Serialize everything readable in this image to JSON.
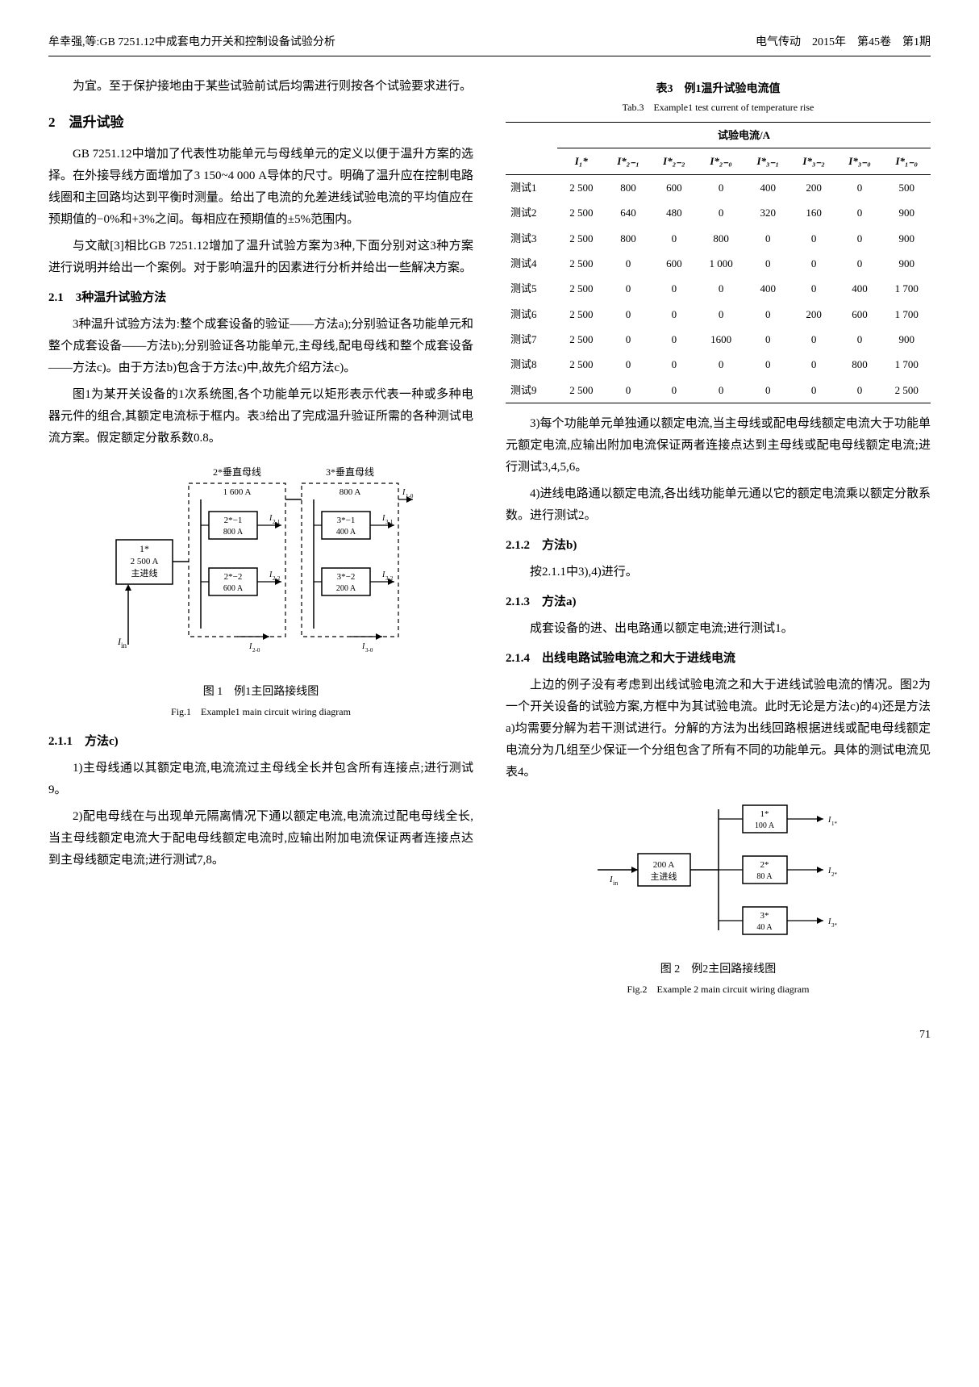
{
  "header": {
    "left": "牟幸强,等:GB 7251.12中成套电力开关和控制设备试验分析",
    "right": "电气传动　2015年　第45卷　第1期"
  },
  "col1": {
    "p1": "为宜。至于保护接地由于某些试验前试后均需进行则按各个试验要求进行。",
    "sec2_title": "2　温升试验",
    "p2": "GB 7251.12中增加了代表性功能单元与母线单元的定义以便于温升方案的选择。在外接导线方面增加了3 150~4 000 A导体的尺寸。明确了温升应在控制电路线圈和主回路均达到平衡时测量。给出了电流的允差进线试验电流的平均值应在预期值的−0%和+3%之间。每相应在预期值的±5%范围内。",
    "p3": "与文献[3]相比GB 7251.12增加了温升试验方案为3种,下面分别对这3种方案进行说明并给出一个案例。对于影响温升的因素进行分析并给出一些解决方案。",
    "sub21_title": "2.1　3种温升试验方法",
    "p4": "3种温升试验方法为:整个成套设备的验证——方法a);分别验证各功能单元和整个成套设备——方法b);分别验证各功能单元,主母线,配电母线和整个成套设备——方法c)。由于方法b)包含于方法c)中,故先介绍方法c)。",
    "p5": "图1为某开关设备的1次系统图,各个功能单元以矩形表示代表一种或多种电器元件的组合,其额定电流标于框内。表3给出了完成温升验证所需的各种测试电流方案。假定额定分散系数0.8。",
    "fig1": {
      "busbar2_label": "2*垂直母线",
      "busbar2_current": "1 600 A",
      "busbar3_label": "3*垂直母线",
      "busbar3_current": "800 A",
      "main_label": "1*",
      "main_current": "2 500 A",
      "main_name": "主进线",
      "box21_label": "2*−1",
      "box21_current": "800 A",
      "box22_label": "2*−2",
      "box22_current": "600 A",
      "box31_label": "3*−1",
      "box31_current": "400 A",
      "box32_label": "3*−2",
      "box32_current": "200 A",
      "caption": "图 1　例1主回路接线图",
      "subcaption": "Fig.1　Example1 main circuit wiring diagram"
    },
    "sub211_title": "2.1.1　方法c)",
    "p6": "1)主母线通以其额定电流,电流流过主母线全长并包含所有连接点;进行测试9。",
    "p7": "2)配电母线在与出现单元隔离情况下通以额定电流,电流流过配电母线全长,当主母线额定电流大于配电母线额定电流时,应输出附加电流保证两者连接点达到主母线额定电流;进行测试7,8。"
  },
  "table3": {
    "title": "表3　例1温升试验电流值",
    "subtitle": "Tab.3　Example1 test current of temperature rise",
    "header_group": "试验电流/A",
    "cols": [
      "",
      "I₁*",
      "I*₂₋₁",
      "I*₂₋₂",
      "I*₂₋₀",
      "I*₃₋₁",
      "I*₃₋₂",
      "I*₃₋₀",
      "I*₁₋₀"
    ],
    "rows": [
      [
        "测试1",
        "2 500",
        "800",
        "600",
        "0",
        "400",
        "200",
        "0",
        "500"
      ],
      [
        "测试2",
        "2 500",
        "640",
        "480",
        "0",
        "320",
        "160",
        "0",
        "900"
      ],
      [
        "测试3",
        "2 500",
        "800",
        "0",
        "800",
        "0",
        "0",
        "0",
        "900"
      ],
      [
        "测试4",
        "2 500",
        "0",
        "600",
        "1 000",
        "0",
        "0",
        "0",
        "900"
      ],
      [
        "测试5",
        "2 500",
        "0",
        "0",
        "0",
        "400",
        "0",
        "400",
        "1 700"
      ],
      [
        "测试6",
        "2 500",
        "0",
        "0",
        "0",
        "0",
        "200",
        "600",
        "1 700"
      ],
      [
        "测试7",
        "2 500",
        "0",
        "0",
        "1600",
        "0",
        "0",
        "0",
        "900"
      ],
      [
        "测试8",
        "2 500",
        "0",
        "0",
        "0",
        "0",
        "0",
        "800",
        "1 700"
      ],
      [
        "测试9",
        "2 500",
        "0",
        "0",
        "0",
        "0",
        "0",
        "0",
        "2 500"
      ]
    ]
  },
  "col2": {
    "p1": "3)每个功能单元单独通以额定电流,当主母线或配电母线额定电流大于功能单元额定电流,应输出附加电流保证两者连接点达到主母线或配电母线额定电流;进行测试3,4,5,6。",
    "p2": "4)进线电路通以额定电流,各出线功能单元通以它的额定电流乘以额定分散系数。进行测试2。",
    "sub212_title": "2.1.2　方法b)",
    "p3": "按2.1.1中3),4)进行。",
    "sub213_title": "2.1.3　方法a)",
    "p4": "成套设备的进、出电路通以额定电流;进行测试1。",
    "sub214_title": "2.1.4　出线电路试验电流之和大于进线电流",
    "p5": "上边的例子没有考虑到出线试验电流之和大于进线试验电流的情况。图2为一个开关设备的试验方案,方框中为其试验电流。此时无论是方法c)的4)还是方法a)均需要分解为若干测试进行。分解的方法为出线回路根据进线或配电母线额定电流分为几组至少保证一个分组包含了所有不同的功能单元。具体的测试电流见表4。",
    "fig2": {
      "main_current": "200 A",
      "main_name": "主进线",
      "box1_label": "1*",
      "box1_current": "100 A",
      "box2_label": "2*",
      "box2_current": "80 A",
      "box3_label": "3*",
      "box3_current": "40 A",
      "caption": "图 2　例2主回路接线图",
      "subcaption": "Fig.2　Example 2 main circuit wiring diagram"
    }
  },
  "page_num": "71"
}
